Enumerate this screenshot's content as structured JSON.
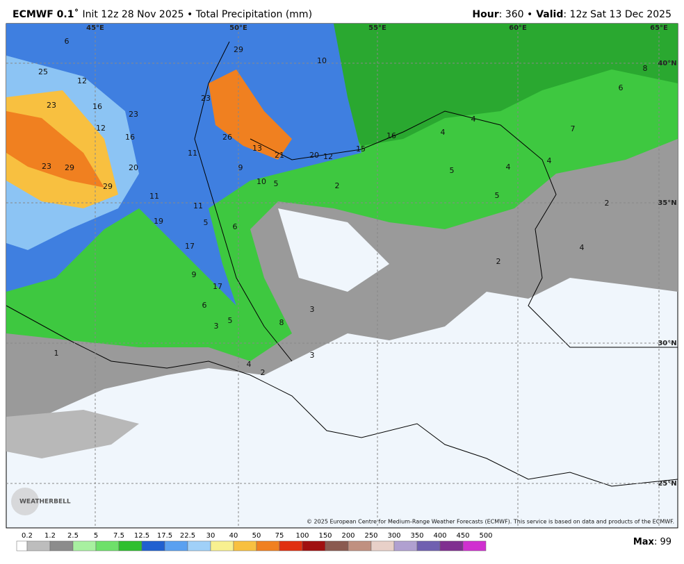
{
  "header": {
    "model": "ECMWF 0.1˚",
    "title": "Init 12z 28 Nov 2025 • Total Precipitation (mm)",
    "hour_label": "Hour",
    "hour_text": ": 360 •",
    "valid_label": "Valid",
    "valid_text": ": 12z Sat 13 Dec 2025"
  },
  "map": {
    "lon_labels": [
      "45°E",
      "50°E",
      "55°E",
      "60°E",
      "65°E"
    ],
    "lat_labels": [
      "40°N",
      "35°N",
      "30°N",
      "25°N"
    ],
    "values": [
      6,
      25,
      12,
      23,
      16,
      23,
      12,
      16,
      23,
      29,
      20,
      29,
      11,
      11,
      19,
      17,
      17,
      9,
      6,
      3,
      5,
      8,
      1,
      4,
      2,
      3,
      3,
      29,
      10,
      23,
      26,
      13,
      21,
      20,
      12,
      15,
      16,
      9,
      10,
      5,
      11,
      2,
      5,
      6,
      4,
      4,
      5,
      4,
      4,
      7,
      6,
      8,
      5,
      2,
      4,
      2
    ],
    "copyright": "© 2025 European Centre for Medium-Range Weather Forecasts (ECMWF). This service is based on data and products of the ECMWF.",
    "logo": "WEATHERBELL"
  },
  "colorbar": {
    "labels": [
      0.2,
      1.2,
      2.5,
      5,
      7.5,
      12.5,
      17.5,
      22.5,
      30,
      40,
      50,
      75,
      100,
      150,
      200,
      250,
      300,
      350,
      400,
      450,
      500
    ],
    "colors": [
      "#ffffff",
      "#bdbdbd",
      "#8c8c8c",
      "#a8f0a0",
      "#6ee06a",
      "#2fbf2f",
      "#2060d0",
      "#5aa0f0",
      "#a0d0f8",
      "#f8f090",
      "#f8c040",
      "#f08020",
      "#e03010",
      "#a01010",
      "#8a5a50",
      "#c09080",
      "#e8d0c8",
      "#b0a0d0",
      "#7060b0",
      "#803090",
      "#d030d0"
    ]
  },
  "max": {
    "label": "Max",
    "text": ": 99"
  }
}
